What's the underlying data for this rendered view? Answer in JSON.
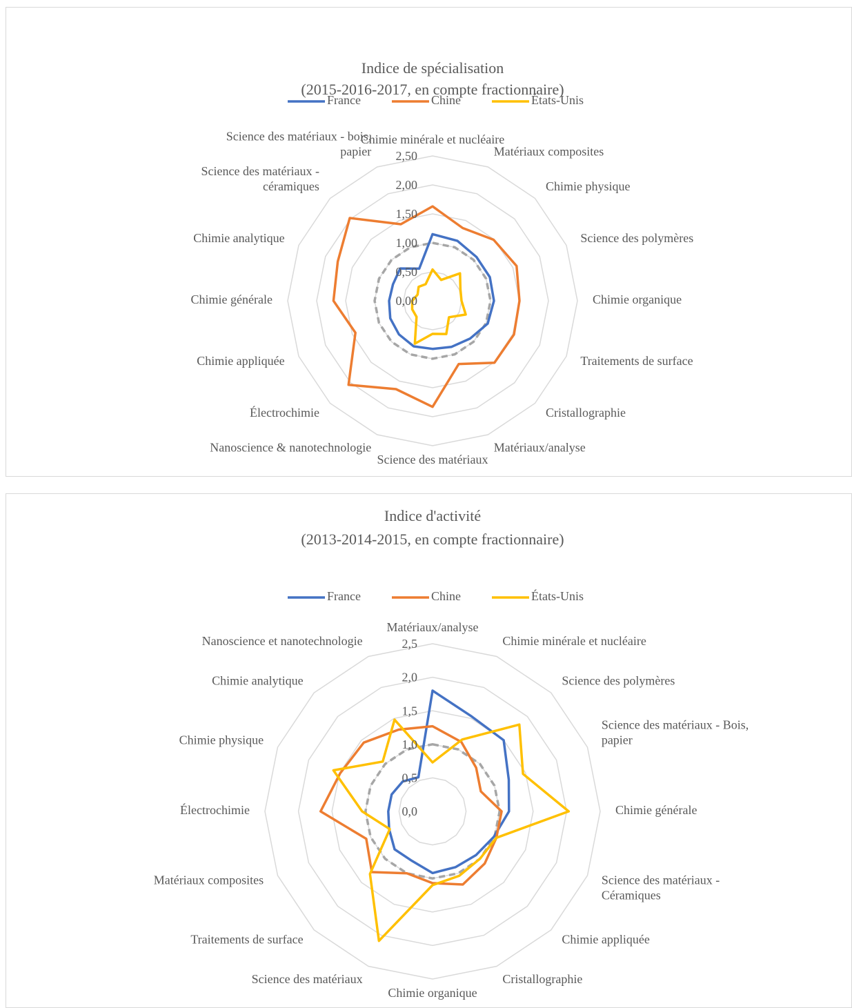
{
  "chart_data": [
    {
      "type": "radar",
      "title": "Indice de spécialisation",
      "subtitle": "(2015-2016-2017, en compte fractionnaire)",
      "categories": [
        "Chimie minérale et nucléaire",
        "Matériaux composites",
        "Chimie physique",
        "Science des polymères",
        "Chimie organique",
        "Traitements de surface",
        "Cristallographie",
        "Matériaux/analyse",
        "Science des matériaux",
        "Nanoscience & nanotechnologie",
        "Électrochimie",
        "Chimie appliquée",
        "Chimie générale",
        "Chimie analytique",
        "Science des matériaux - céramiques",
        "Science des matériaux - bois, papier"
      ],
      "series": [
        {
          "name": "France",
          "color": "#4472c4",
          "values": [
            1.15,
            1.12,
            1.07,
            1.07,
            1.06,
            1.03,
            0.92,
            0.86,
            0.83,
            0.85,
            0.82,
            0.79,
            0.75,
            0.74,
            0.79,
            0.6
          ]
        },
        {
          "name": "Chine",
          "color": "#ed7d31",
          "values": [
            1.63,
            1.36,
            1.49,
            1.57,
            1.5,
            1.52,
            1.51,
            1.18,
            1.83,
            1.65,
            2.05,
            1.44,
            1.71,
            1.77,
            2.02,
            1.43
          ]
        },
        {
          "name": "États-Unis",
          "color": "#ffc000",
          "values": [
            0.54,
            0.39,
            0.67,
            0.52,
            0.5,
            0.62,
            0.4,
            0.62,
            0.57,
            0.8,
            0.39,
            0.38,
            0.35,
            0.28,
            0.34,
            0.31
          ]
        }
      ],
      "reference_line": {
        "value": 1,
        "color": "#a6a6a6"
      },
      "ylim": [
        0,
        2.5
      ],
      "yticks": [
        {
          "value": 0,
          "label": "0,00"
        },
        {
          "value": 0.5,
          "label": "0,50"
        },
        {
          "value": 1,
          "label": "1,00"
        },
        {
          "value": 1.5,
          "label": "1,50"
        },
        {
          "value": 2,
          "label": "2,00"
        },
        {
          "value": 2.5,
          "label": "2,50"
        }
      ],
      "grid": true,
      "legend": "top"
    },
    {
      "type": "radar",
      "title": "Indice d'activité",
      "subtitle": "(2013-2014-2015, en compte fractionnaire)",
      "categories": [
        "Matériaux/analyse",
        "Chimie minérale et nucléaire",
        "Science des polymères",
        "Science des matériaux - Bois, papier",
        "Chimie générale",
        "Science des matériaux - Céramiques",
        "Chimie appliquée",
        "Cristallographie",
        "Chimie organique",
        "Science des matériaux",
        "Traitements de surface",
        "Matériaux composites",
        "Électrochimie",
        "Chimie physique",
        "Chimie analytique",
        "Nanoscience et nanotechnologie"
      ],
      "series": [
        {
          "name": "France",
          "color": "#4472c4",
          "values": [
            1.8,
            1.53,
            1.5,
            1.23,
            1.14,
            0.99,
            0.92,
            0.9,
            0.92,
            0.8,
            0.8,
            0.7,
            0.66,
            0.66,
            0.63,
            0.55
          ]
        },
        {
          "name": "Chine",
          "color": "#ed7d31",
          "values": [
            1.27,
            1.12,
            0.92,
            0.78,
            1.03,
            1.03,
            1.1,
            1.18,
            1.07,
            1.0,
            1.28,
            1.07,
            1.67,
            1.49,
            1.45,
            1.32
          ]
        },
        {
          "name": "États-Unis",
          "color": "#ffc000",
          "values": [
            0.73,
            1.16,
            1.83,
            1.46,
            2.03,
            1.03,
            1.0,
            1.04,
            1.1,
            2.09,
            1.32,
            0.69,
            1.05,
            1.6,
            1.05,
            1.48
          ]
        }
      ],
      "reference_line": {
        "value": 1,
        "color": "#a6a6a6"
      },
      "ylim": [
        0,
        2.5
      ],
      "yticks": [
        {
          "value": 0,
          "label": "0,0"
        },
        {
          "value": 0.5,
          "label": "0,5"
        },
        {
          "value": 1,
          "label": "1,0"
        },
        {
          "value": 1.5,
          "label": "1,5"
        },
        {
          "value": 2,
          "label": "2,0"
        },
        {
          "value": 2.5,
          "label": "2,5"
        }
      ],
      "grid": true,
      "legend": "top"
    }
  ]
}
